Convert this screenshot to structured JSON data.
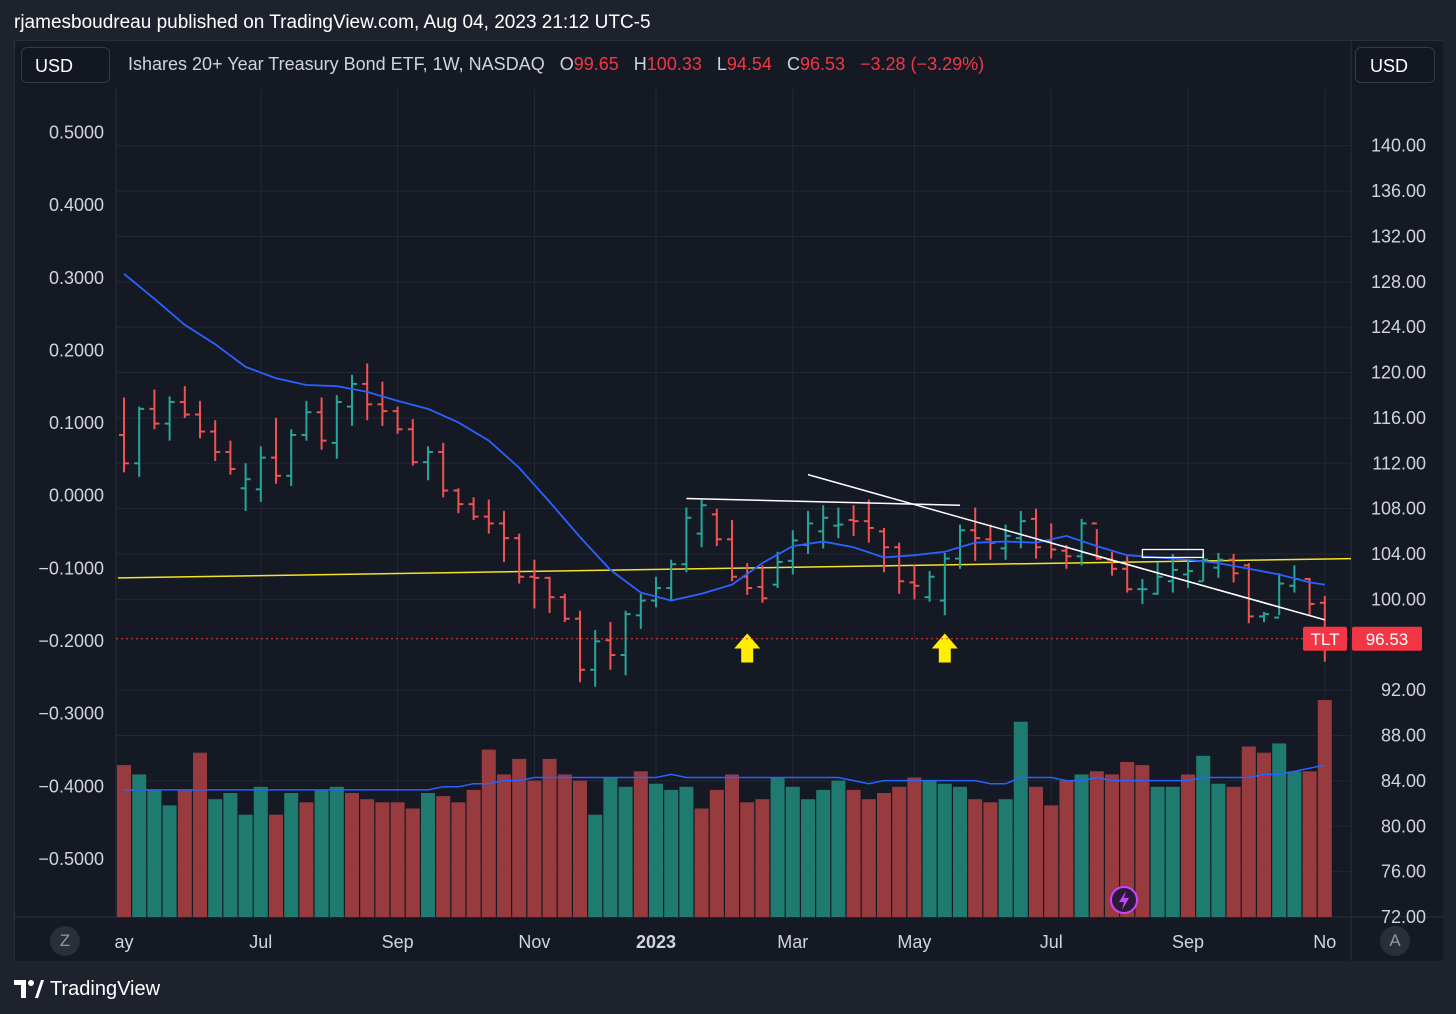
{
  "header": {
    "publisher_line": "rjamesboudreau published on TradingView.com, Aug 04, 2023 21:12 UTC-5"
  },
  "toolbar": {
    "currency_left": "USD",
    "currency_right": "USD"
  },
  "legend": {
    "symbol_desc": "Ishares 20+ Year Treasury Bond ETF, 1W, NASDAQ",
    "open_label": "O",
    "open_value": "99.65",
    "high_label": "H",
    "high_value": "100.33",
    "low_label": "L",
    "low_value": "94.54",
    "close_label": "C",
    "close_value": "96.53",
    "change": "−3.28 (−3.29%)"
  },
  "bottom": {
    "z_label": "Z",
    "a_label": "A"
  },
  "footer": {
    "brand": "TradingView",
    "logo_icon": "tradingview-logo-icon"
  },
  "colors": {
    "up": "#26a69a",
    "down": "#ef5350",
    "ma": "#2962ff",
    "trendline_yellow": "#f5e22b",
    "price_badge": "#f23645"
  },
  "chart_data": {
    "type": "ohlc",
    "symbol": "TLT",
    "interval": "1W",
    "price_scale": {
      "range": [
        72,
        145
      ],
      "ticks": [
        "140.00",
        "136.00",
        "132.00",
        "128.00",
        "124.00",
        "120.00",
        "116.00",
        "112.00",
        "108.00",
        "104.00",
        "100.00",
        "92.00",
        "88.00",
        "84.00",
        "80.00",
        "76.00",
        "72.00"
      ]
    },
    "left_scale": {
      "range": [
        -0.58,
        0.56
      ],
      "ticks": [
        "0.5000",
        "0.4000",
        "0.3000",
        "0.2000",
        "0.1000",
        "0.0000",
        "−0.1000",
        "−0.2000",
        "−0.3000",
        "−0.4000",
        "−0.5000"
      ]
    },
    "x_labels": [
      {
        "t": "ay",
        "w": 0
      },
      {
        "t": "Jul",
        "w": 9
      },
      {
        "t": "Sep",
        "w": 18
      },
      {
        "t": "Nov",
        "w": 27
      },
      {
        "t": "2023",
        "w": 35,
        "bold": true
      },
      {
        "t": "Mar",
        "w": 44
      },
      {
        "t": "May",
        "w": 52
      },
      {
        "t": "Jul",
        "w": 61
      },
      {
        "t": "Sep",
        "w": 70
      },
      {
        "t": "No",
        "w": 79
      }
    ],
    "last_price": {
      "ticker": "TLT",
      "value": "96.53"
    },
    "bars": [
      [
        114.5,
        117.8,
        111.2,
        112.0
      ],
      [
        112.0,
        117.0,
        110.8,
        116.8
      ],
      [
        116.8,
        118.5,
        115.0,
        115.5
      ],
      [
        115.5,
        117.9,
        114.0,
        117.4
      ],
      [
        117.4,
        118.8,
        116.0,
        116.3
      ],
      [
        116.3,
        117.5,
        114.2,
        114.8
      ],
      [
        114.8,
        115.8,
        112.2,
        113.0
      ],
      [
        113.0,
        114.0,
        111.0,
        111.5
      ],
      [
        109.8,
        112.0,
        107.8,
        110.6
      ],
      [
        109.7,
        113.5,
        108.6,
        112.5
      ],
      [
        112.5,
        116.0,
        110.2,
        110.9
      ],
      [
        110.9,
        115.0,
        110.0,
        114.5
      ],
      [
        114.5,
        117.5,
        114.0,
        116.5
      ],
      [
        116.5,
        117.8,
        113.2,
        114.0
      ],
      [
        113.8,
        118.0,
        112.4,
        117.4
      ],
      [
        117.0,
        119.8,
        115.3,
        119.0
      ],
      [
        119.0,
        120.8,
        115.8,
        117.2
      ],
      [
        117.2,
        119.2,
        115.3,
        116.6
      ],
      [
        116.6,
        117.0,
        114.6,
        115.0
      ],
      [
        115.0,
        115.9,
        111.8,
        112.1
      ],
      [
        112.1,
        113.5,
        110.5,
        113.0
      ],
      [
        113.0,
        113.8,
        109.0,
        109.6
      ],
      [
        109.6,
        109.8,
        107.6,
        108.4
      ],
      [
        108.4,
        109.0,
        107.0,
        107.3
      ],
      [
        107.3,
        108.8,
        105.8,
        106.7
      ],
      [
        106.7,
        107.8,
        103.3,
        105.4
      ],
      [
        105.4,
        105.8,
        101.4,
        102.0
      ],
      [
        102.0,
        103.5,
        99.2,
        101.9
      ],
      [
        101.9,
        102.0,
        98.8,
        100.2
      ],
      [
        100.2,
        100.5,
        98.0,
        98.3
      ],
      [
        98.3,
        99.0,
        92.7,
        93.8
      ],
      [
        93.8,
        97.3,
        92.3,
        96.3
      ],
      [
        96.4,
        98.0,
        93.8,
        95.1
      ],
      [
        95.1,
        99.0,
        93.3,
        98.7
      ],
      [
        98.6,
        100.5,
        97.4,
        99.9
      ],
      [
        99.9,
        102.0,
        99.3,
        101.0
      ],
      [
        101.0,
        103.5,
        100.0,
        103.1
      ],
      [
        103.1,
        108.1,
        102.4,
        107.2
      ],
      [
        105.8,
        108.8,
        104.6,
        108.3
      ],
      [
        107.5,
        108.0,
        104.7,
        105.3
      ],
      [
        105.3,
        107.0,
        101.6,
        102.0
      ],
      [
        102.0,
        103.2,
        100.4,
        101.0
      ],
      [
        101.1,
        103.0,
        99.7,
        100.1
      ],
      [
        101.3,
        104.2,
        101.0,
        103.3
      ],
      [
        103.4,
        106.1,
        102.2,
        105.2
      ],
      [
        104.8,
        107.8,
        104.0,
        106.7
      ],
      [
        106.0,
        108.3,
        104.5,
        107.2
      ],
      [
        106.5,
        108.1,
        105.4,
        106.6
      ],
      [
        107.0,
        108.3,
        105.6,
        106.9
      ],
      [
        106.9,
        108.8,
        105.0,
        106.3
      ],
      [
        106.0,
        106.3,
        102.4,
        104.6
      ],
      [
        104.6,
        105.0,
        100.5,
        101.6
      ],
      [
        101.5,
        103.0,
        100.0,
        101.2
      ],
      [
        100.2,
        102.5,
        99.8,
        102.0
      ],
      [
        99.9,
        104.1,
        98.6,
        103.6
      ],
      [
        103.6,
        106.6,
        102.7,
        106.1
      ],
      [
        106.1,
        108.1,
        103.4,
        105.4
      ],
      [
        105.3,
        106.6,
        103.5,
        105.0
      ],
      [
        104.5,
        106.6,
        103.5,
        105.6
      ],
      [
        105.4,
        107.8,
        104.5,
        106.9
      ],
      [
        107.1,
        108.0,
        103.6,
        104.6
      ],
      [
        105.1,
        106.7,
        103.6,
        104.4
      ],
      [
        104.3,
        104.8,
        102.7,
        103.8
      ],
      [
        103.8,
        107.1,
        103.0,
        106.7
      ],
      [
        106.7,
        106.2,
        103.5,
        103.6
      ],
      [
        103.5,
        104.2,
        102.1,
        102.7
      ],
      [
        102.7,
        103.8,
        100.6,
        100.9
      ],
      [
        100.9,
        101.8,
        99.6,
        100.9
      ],
      [
        100.5,
        103.3,
        100.4,
        102.0
      ],
      [
        101.6,
        104.0,
        100.6,
        102.6
      ],
      [
        102.2,
        103.4,
        101.0,
        102.5
      ],
      [
        101.6,
        104.0,
        101.6,
        103.5
      ],
      [
        102.8,
        104.1,
        101.9,
        103.5
      ],
      [
        103.5,
        104.0,
        101.5,
        102.3
      ],
      [
        103.0,
        103.2,
        97.9,
        98.5
      ],
      [
        98.5,
        98.9,
        98.0,
        98.7
      ],
      [
        98.4,
        102.3,
        98.6,
        101.4
      ],
      [
        101.2,
        103.0,
        100.6,
        101.8
      ],
      [
        101.8,
        101.9,
        98.6,
        99.6
      ],
      [
        99.7,
        100.3,
        94.5,
        96.5
      ]
    ],
    "moving_average_20w": [
      [
        0,
        128.7
      ],
      [
        2,
        126.5
      ],
      [
        4,
        124.2
      ],
      [
        6,
        122.5
      ],
      [
        8,
        120.5
      ],
      [
        10,
        119.5
      ],
      [
        12,
        118.9
      ],
      [
        14,
        118.8
      ],
      [
        16,
        118.3
      ],
      [
        18,
        117.5
      ],
      [
        20,
        116.8
      ],
      [
        22,
        115.6
      ],
      [
        24,
        114.0
      ],
      [
        26,
        111.6
      ],
      [
        28,
        108.6
      ],
      [
        30,
        105.5
      ],
      [
        32,
        102.6
      ],
      [
        34,
        100.6
      ],
      [
        36,
        99.9
      ],
      [
        38,
        100.5
      ],
      [
        40,
        101.3
      ],
      [
        42,
        103.2
      ],
      [
        44,
        104.7
      ],
      [
        46,
        105.1
      ],
      [
        48,
        104.6
      ],
      [
        50,
        103.7
      ],
      [
        52,
        103.9
      ],
      [
        54,
        104.2
      ],
      [
        56,
        105.0
      ],
      [
        58,
        105.1
      ],
      [
        60,
        105.0
      ],
      [
        62,
        105.6
      ],
      [
        64,
        104.7
      ],
      [
        66,
        103.9
      ],
      [
        68,
        103.7
      ],
      [
        70,
        103.5
      ],
      [
        72,
        103.2
      ],
      [
        74,
        102.7
      ],
      [
        76,
        102.2
      ],
      [
        78,
        101.5
      ],
      [
        79,
        101.3
      ]
    ],
    "volume": {
      "max": 1.0,
      "values": [
        0.49,
        0.46,
        0.41,
        0.36,
        0.41,
        0.53,
        0.38,
        0.4,
        0.33,
        0.42,
        0.33,
        0.4,
        0.37,
        0.41,
        0.42,
        0.4,
        0.38,
        0.37,
        0.37,
        0.35,
        0.4,
        0.39,
        0.37,
        0.41,
        0.54,
        0.46,
        0.51,
        0.44,
        0.51,
        0.46,
        0.44,
        0.33,
        0.45,
        0.42,
        0.47,
        0.43,
        0.41,
        0.42,
        0.35,
        0.41,
        0.46,
        0.37,
        0.38,
        0.45,
        0.42,
        0.38,
        0.41,
        0.44,
        0.41,
        0.38,
        0.4,
        0.42,
        0.45,
        0.44,
        0.43,
        0.42,
        0.38,
        0.37,
        0.38,
        0.63,
        0.42,
        0.36,
        0.44,
        0.46,
        0.47,
        0.46,
        0.5,
        0.49,
        0.42,
        0.42,
        0.46,
        0.52,
        0.43,
        0.42,
        0.55,
        0.53,
        0.56,
        0.47,
        0.47,
        0.7
      ],
      "up": [
        0,
        1,
        1,
        1,
        0,
        0,
        1,
        1,
        1,
        1,
        0,
        1,
        0,
        1,
        1,
        0,
        0,
        0,
        0,
        0,
        1,
        0,
        0,
        0,
        0,
        0,
        0,
        0,
        0,
        0,
        0,
        1,
        1,
        1,
        0,
        1,
        1,
        1,
        0,
        0,
        0,
        0,
        0,
        1,
        1,
        1,
        1,
        1,
        0,
        0,
        0,
        0,
        0,
        1,
        1,
        1,
        0,
        0,
        1,
        1,
        0,
        0,
        0,
        1,
        0,
        0,
        0,
        0,
        1,
        1,
        0,
        1,
        1,
        0,
        0,
        0,
        1,
        1,
        0,
        0
      ],
      "ma_values": [
        0.41,
        0.41,
        0.41,
        0.41,
        0.41,
        0.41,
        0.41,
        0.41,
        0.41,
        0.41,
        0.41,
        0.41,
        0.41,
        0.41,
        0.41,
        0.41,
        0.41,
        0.41,
        0.41,
        0.41,
        0.41,
        0.42,
        0.42,
        0.43,
        0.43,
        0.44,
        0.44,
        0.45,
        0.45,
        0.45,
        0.45,
        0.45,
        0.45,
        0.45,
        0.45,
        0.45,
        0.46,
        0.45,
        0.45,
        0.45,
        0.45,
        0.45,
        0.45,
        0.45,
        0.45,
        0.45,
        0.45,
        0.45,
        0.44,
        0.43,
        0.44,
        0.44,
        0.44,
        0.44,
        0.44,
        0.44,
        0.44,
        0.43,
        0.43,
        0.45,
        0.45,
        0.45,
        0.44,
        0.44,
        0.45,
        0.44,
        0.44,
        0.44,
        0.44,
        0.44,
        0.44,
        0.45,
        0.45,
        0.45,
        0.45,
        0.46,
        0.46,
        0.47,
        0.48,
        0.49
      ]
    },
    "drawings": {
      "horizontal_line": [
        [
          37,
          108.9
        ],
        [
          55,
          108.3
        ]
      ],
      "downtrend_line": [
        [
          45,
          111.0
        ],
        [
          79,
          98.2
        ]
      ],
      "rectangle": [
        [
          67,
          103.7
        ],
        [
          71,
          104.4
        ]
      ],
      "downtrend_line_2": [
        [
          63,
          104.2
        ],
        [
          79,
          98.2
        ]
      ],
      "yellow_trendline": [
        [
          -0.4,
          101.9
        ],
        [
          90,
          103.6
        ]
      ],
      "arrows": [
        [
          41,
          97.0
        ],
        [
          54,
          97.0
        ]
      ]
    }
  }
}
